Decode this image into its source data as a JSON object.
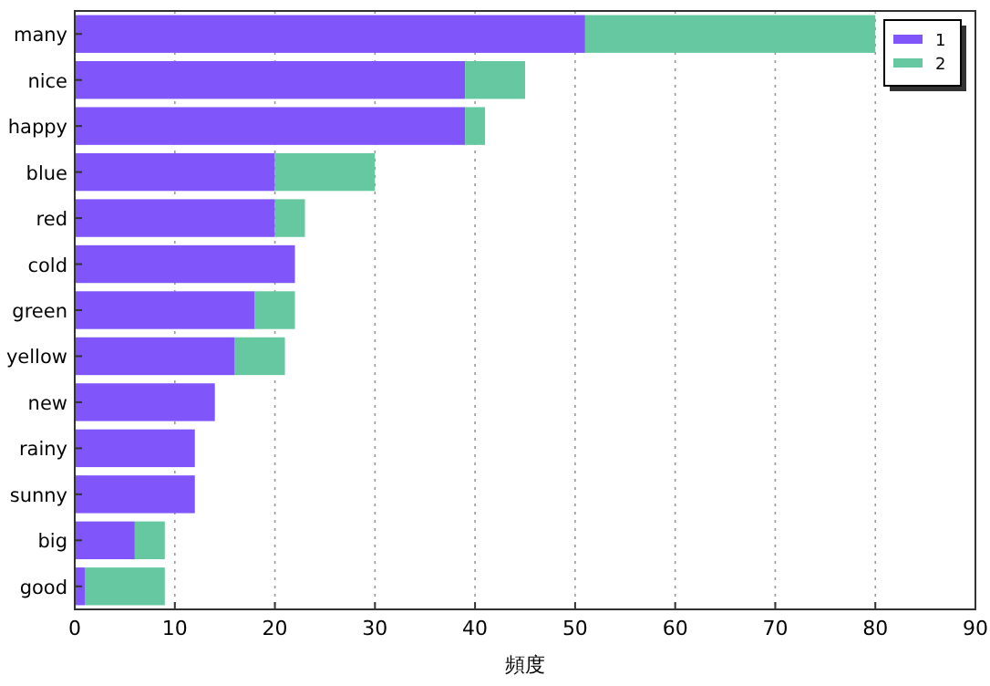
{
  "chart_data": {
    "type": "bar",
    "orientation": "horizontal",
    "stacked": true,
    "xlabel": "頻度",
    "categories": [
      "many",
      "nice",
      "happy",
      "blue",
      "red",
      "cold",
      "green",
      "yellow",
      "new",
      "rainy",
      "sunny",
      "big",
      "good"
    ],
    "series": [
      {
        "name": "1",
        "color": "#8055fa",
        "values": [
          51,
          39,
          39,
          20,
          20,
          22,
          18,
          16,
          14,
          12,
          12,
          6,
          1
        ]
      },
      {
        "name": "2",
        "color": "#66c8a0",
        "values": [
          29,
          6,
          2,
          10,
          3,
          0,
          4,
          5,
          0,
          0,
          0,
          3,
          8
        ]
      }
    ],
    "xlim": [
      0,
      90
    ],
    "xticks": [
      0,
      10,
      20,
      30,
      40,
      50,
      60,
      70,
      80,
      90
    ],
    "grid": "x",
    "legend": "top right"
  }
}
